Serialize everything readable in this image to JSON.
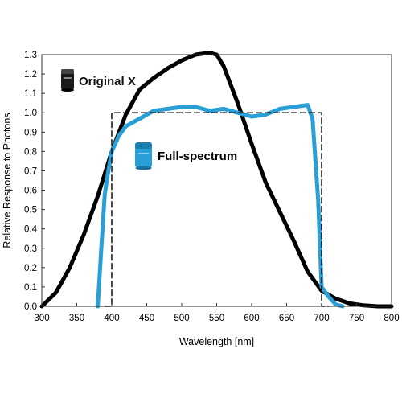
{
  "chart_data": {
    "type": "line",
    "xlabel": "Wavelength [nm]",
    "ylabel": "Relative Response to Photons",
    "xlim": [
      300,
      800
    ],
    "ylim": [
      0.0,
      1.3
    ],
    "xticks": [
      "300",
      "350",
      "400",
      "450",
      "500",
      "550",
      "600",
      "650",
      "700",
      "750",
      "800"
    ],
    "yticks": [
      "0.0",
      "0.1",
      "0.2",
      "0.3",
      "0.4",
      "0.5",
      "0.6",
      "0.7",
      "0.8",
      "0.9",
      "1.0",
      "1.1",
      "1.2",
      "1.3"
    ],
    "grid": false,
    "series": [
      {
        "name": "Original X",
        "color": "#000000",
        "icon": "sensor-black-icon",
        "x": [
          300,
          320,
          340,
          360,
          380,
          400,
          420,
          440,
          460,
          480,
          500,
          520,
          540,
          550,
          560,
          580,
          600,
          620,
          640,
          660,
          680,
          700,
          720,
          740,
          760,
          780,
          800
        ],
        "y": [
          0.0,
          0.07,
          0.2,
          0.37,
          0.57,
          0.8,
          0.99,
          1.12,
          1.18,
          1.23,
          1.27,
          1.3,
          1.31,
          1.3,
          1.24,
          1.05,
          0.84,
          0.64,
          0.49,
          0.34,
          0.18,
          0.08,
          0.04,
          0.015,
          0.005,
          0.0,
          0.0
        ]
      },
      {
        "name": "Full-spectrum",
        "color": "#2a9fd6",
        "icon": "sensor-blue-icon",
        "x": [
          380,
          385,
          390,
          395,
          400,
          410,
          420,
          440,
          460,
          480,
          500,
          520,
          540,
          560,
          580,
          600,
          620,
          640,
          660,
          680,
          687,
          695,
          700,
          710,
          720,
          730
        ],
        "y": [
          0.0,
          0.3,
          0.58,
          0.7,
          0.8,
          0.88,
          0.93,
          0.97,
          1.01,
          1.02,
          1.03,
          1.03,
          1.01,
          1.02,
          1.0,
          0.98,
          0.99,
          1.02,
          1.03,
          1.04,
          0.97,
          0.55,
          0.1,
          0.05,
          0.01,
          0.0
        ]
      },
      {
        "name": "",
        "color": "#000000",
        "style": "dashed",
        "x": [
          390,
          400,
          400,
          700,
          700,
          710
        ],
        "y": [
          0.0,
          0.0,
          1.0,
          1.0,
          0.0,
          0.0
        ]
      }
    ]
  }
}
